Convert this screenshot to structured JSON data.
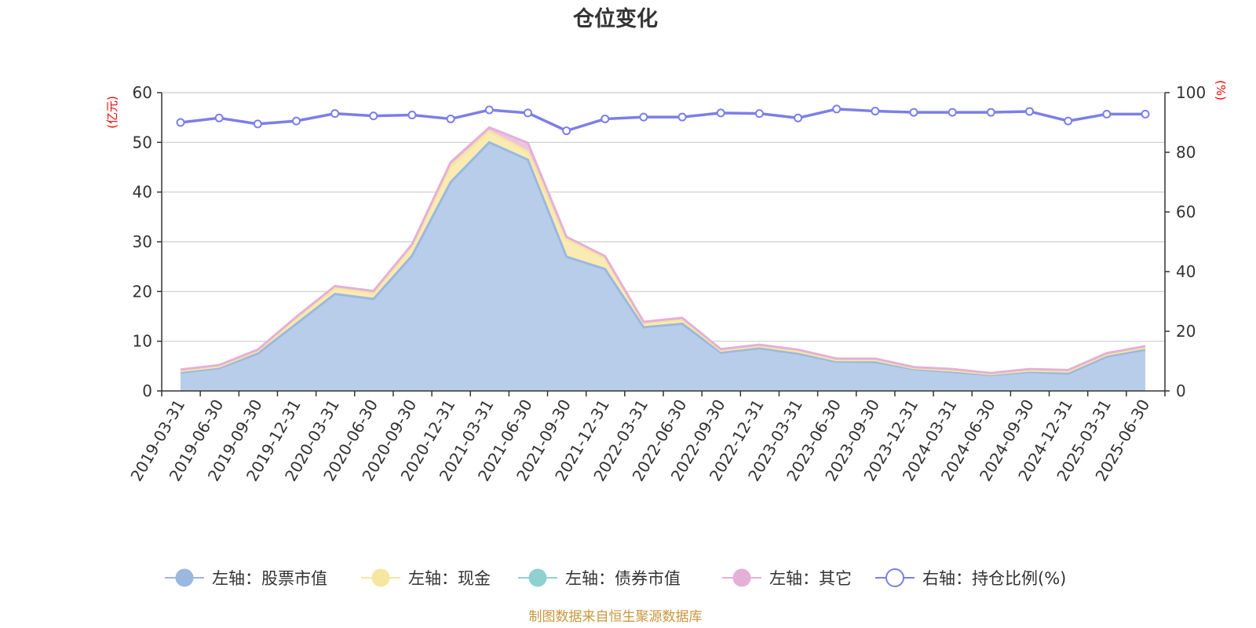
{
  "chart_data": {
    "type": "area",
    "title": "仓位变化",
    "y_left_unit": "(亿元)",
    "y_right_unit": "(%)",
    "y_left_ticks": [
      "0",
      "10",
      "20",
      "30",
      "40",
      "50",
      "60"
    ],
    "y_right_ticks": [
      "0",
      "20",
      "40",
      "60",
      "80",
      "100"
    ],
    "ylim_left": [
      0,
      60
    ],
    "ylim_right": [
      0,
      100
    ],
    "grid": true,
    "legend_position": "bottom",
    "categories": [
      "2019-03-31",
      "2019-06-30",
      "2019-09-30",
      "2019-12-31",
      "2020-03-31",
      "2020-06-30",
      "2020-09-30",
      "2020-12-31",
      "2021-03-31",
      "2021-06-30",
      "2021-09-30",
      "2021-12-31",
      "2022-03-31",
      "2022-06-30",
      "2022-09-30",
      "2022-12-31",
      "2023-03-31",
      "2023-06-30",
      "2023-09-30",
      "2023-12-31",
      "2024-03-31",
      "2024-06-30",
      "2024-09-30",
      "2024-12-31",
      "2025-03-31",
      "2025-06-30"
    ],
    "series": [
      {
        "name": "左轴：股票市值",
        "axis": "left",
        "color": "#9bb8e0",
        "fill": "#b8cdea",
        "values": [
          3.7,
          4.6,
          7.5,
          13.5,
          19.5,
          18.5,
          27.2,
          42.0,
          50.0,
          46.5,
          27.0,
          24.5,
          12.8,
          13.5,
          7.7,
          8.6,
          7.5,
          5.9,
          5.8,
          4.4,
          3.8,
          3.2,
          3.8,
          3.5,
          6.9,
          8.3
        ]
      },
      {
        "name": "左轴：现金",
        "axis": "left",
        "color": "#f5e6a0",
        "fill": "#f9ebb2",
        "values": [
          0.3,
          0.3,
          0.5,
          1.0,
          1.2,
          1.2,
          1.8,
          3.2,
          2.2,
          1.6,
          3.5,
          2.2,
          0.8,
          0.8,
          0.4,
          0.4,
          0.4,
          0.3,
          0.4,
          0.2,
          0.3,
          0.2,
          0.3,
          0.4,
          0.4,
          0.4
        ]
      },
      {
        "name": "左轴：债券市值",
        "axis": "left",
        "color": "#8fd1d1",
        "fill": "#a8dcdc",
        "values": [
          0,
          0,
          0,
          0,
          0,
          0,
          0,
          0,
          0,
          0,
          0,
          0,
          0,
          0,
          0,
          0,
          0,
          0,
          0,
          0,
          0,
          0,
          0,
          0,
          0,
          0
        ]
      },
      {
        "name": "左轴：其它",
        "axis": "left",
        "color": "#e4b0d8",
        "fill": "#ecc4e0",
        "values": [
          0.3,
          0.3,
          0.3,
          0.4,
          0.4,
          0.4,
          0.5,
          0.8,
          0.8,
          1.8,
          0.5,
          0.4,
          0.3,
          0.4,
          0.3,
          0.3,
          0.4,
          0.3,
          0.3,
          0.2,
          0.3,
          0.2,
          0.3,
          0.3,
          0.3,
          0.3
        ]
      },
      {
        "name": "右轴：持仓比例(%)",
        "axis": "right",
        "color": "#7b7fe8",
        "values": [
          90.0,
          91.5,
          89.5,
          90.5,
          93.0,
          92.2,
          92.5,
          91.2,
          94.2,
          93.2,
          87.2,
          91.2,
          91.8,
          91.8,
          93.2,
          93.0,
          91.5,
          94.5,
          93.8,
          93.4,
          93.4,
          93.4,
          93.7,
          90.5,
          92.8,
          92.8
        ]
      }
    ]
  },
  "source_text": "制图数据来自恒生聚源数据库"
}
